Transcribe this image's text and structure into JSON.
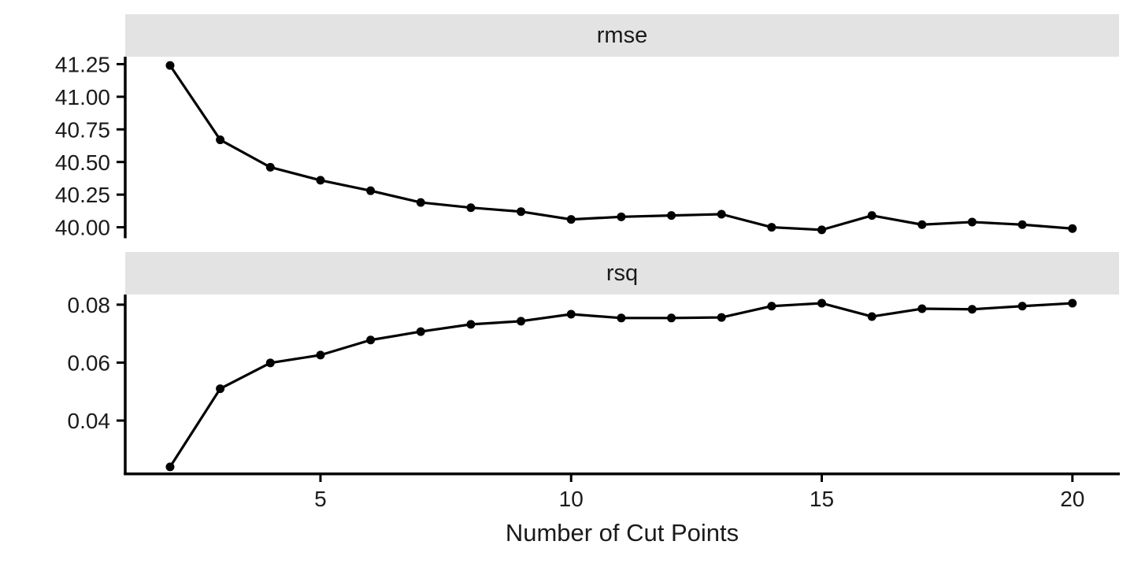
{
  "figure": {
    "colors": {
      "background": "#FFFFFF",
      "strip_bg": "#E3E3E3",
      "text": "#1A1A1A",
      "line": "#000000",
      "axis": "#000000"
    }
  },
  "chart_data": {
    "type": "line",
    "title": "",
    "xlabel": "Number of Cut Points",
    "ylabel": "",
    "grid": false,
    "legend": "none",
    "x": [
      2,
      3,
      4,
      5,
      6,
      7,
      8,
      9,
      10,
      11,
      12,
      13,
      14,
      15,
      16,
      17,
      18,
      19,
      20
    ],
    "x_ticks": [
      {
        "value": 5,
        "label": "5"
      },
      {
        "value": 10,
        "label": "10"
      },
      {
        "value": 15,
        "label": "15"
      },
      {
        "value": 20,
        "label": "20"
      }
    ],
    "x_range_shown": [
      1.1,
      20.9
    ],
    "facets": [
      {
        "name": "rmse",
        "title": "rmse",
        "marker": "point",
        "ylim": [
          39.925,
          41.307
        ],
        "y_ticks": [
          {
            "value": 40.0,
            "label": "40.00"
          },
          {
            "value": 40.25,
            "label": "40.25"
          },
          {
            "value": 40.5,
            "label": "40.50"
          },
          {
            "value": 40.75,
            "label": "40.75"
          },
          {
            "value": 41.0,
            "label": "41.00"
          },
          {
            "value": 41.25,
            "label": "41.25"
          }
        ],
        "values": [
          41.24,
          40.67,
          40.46,
          40.36,
          40.28,
          40.19,
          40.15,
          40.12,
          40.06,
          40.08,
          40.09,
          40.1,
          40.0,
          39.98,
          40.09,
          40.02,
          40.04,
          40.02,
          39.99
        ]
      },
      {
        "name": "rsq",
        "title": "rsq",
        "marker": "point",
        "ylim": [
          0.0218,
          0.0835
        ],
        "y_ticks": [
          {
            "value": 0.04,
            "label": "0.04"
          },
          {
            "value": 0.06,
            "label": "0.06"
          },
          {
            "value": 0.08,
            "label": "0.08"
          }
        ],
        "values": [
          0.024,
          0.051,
          0.0599,
          0.0626,
          0.0678,
          0.0707,
          0.0732,
          0.0743,
          0.0767,
          0.0754,
          0.0754,
          0.0756,
          0.0795,
          0.0805,
          0.0759,
          0.0786,
          0.0784,
          0.0795,
          0.0805
        ]
      }
    ]
  }
}
